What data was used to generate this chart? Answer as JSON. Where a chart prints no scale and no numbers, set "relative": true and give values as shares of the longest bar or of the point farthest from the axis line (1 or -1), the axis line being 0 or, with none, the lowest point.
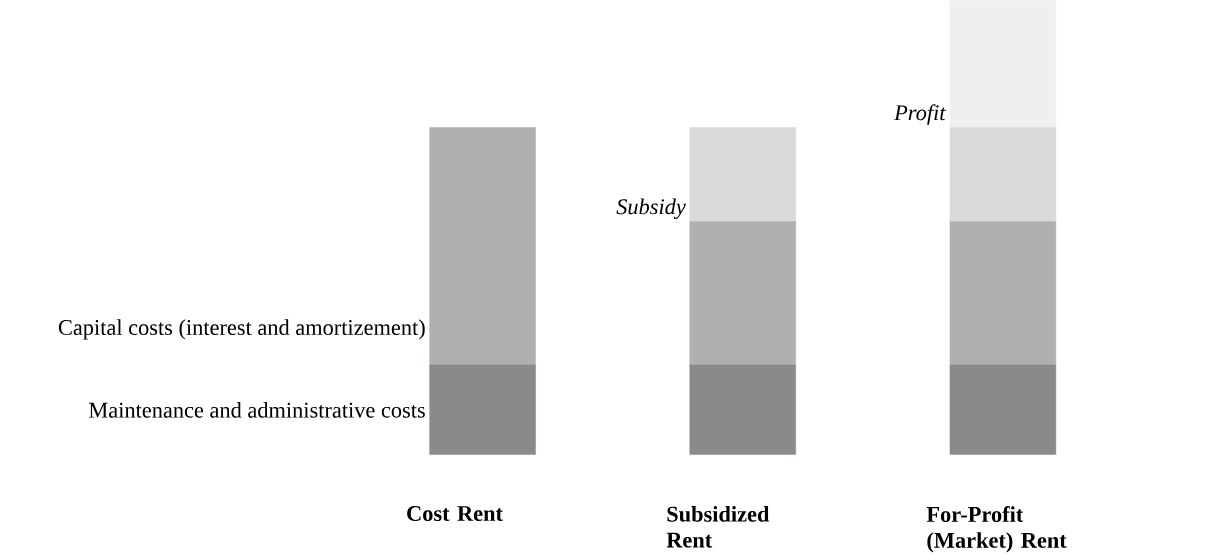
{
  "chart_data": {
    "type": "bar",
    "stacked": true,
    "relative": true,
    "categories": [
      "Cost Rent",
      "Subsidized Rent",
      "For-Profit (Market) Rent"
    ],
    "series": [
      {
        "name": "Maintenance and administrative costs",
        "color": "#898a8c",
        "values": [
          0.197,
          0.197,
          0.197
        ]
      },
      {
        "name": "Capital costs (interest and amortizement)",
        "color": "#aeb0b2",
        "values": [
          0.523,
          0.316,
          0.316
        ]
      },
      {
        "name": "*Subsidy*",
        "color": "#d8d9da",
        "values": [
          null,
          0.207,
          0.207
        ]
      },
      {
        "name": "*Profit*",
        "color": "#efefef",
        "values": [
          null,
          null,
          0.28
        ]
      }
    ]
  }
}
